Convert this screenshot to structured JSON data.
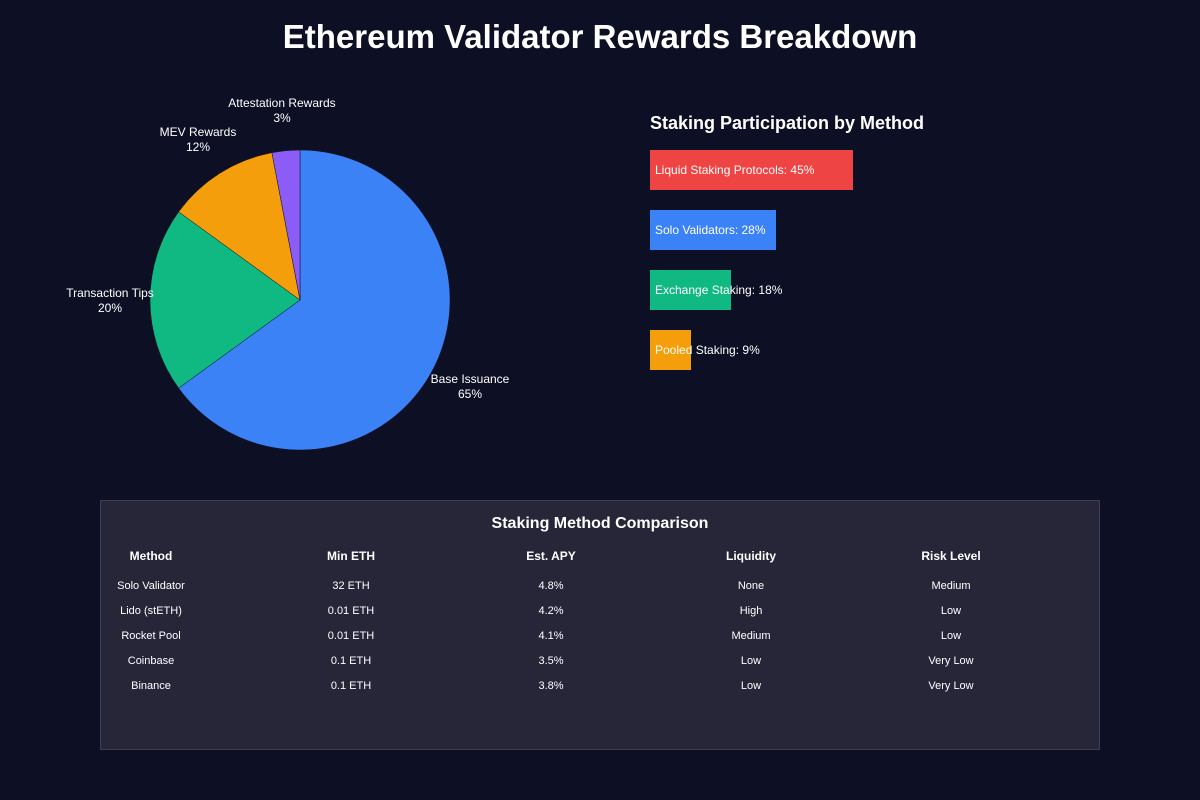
{
  "title": "Ethereum Validator Rewards Breakdown",
  "chart_data": [
    {
      "type": "pie",
      "slices": [
        {
          "label": "Base Issuance",
          "value": 65,
          "value_label": "65%",
          "color": "#3b82f6"
        },
        {
          "label": "Transaction Tips",
          "value": 20,
          "value_label": "20%",
          "color": "#10b981"
        },
        {
          "label": "MEV Rewards",
          "value": 12,
          "value_label": "12%",
          "color": "#f59e0b"
        },
        {
          "label": "Attestation Rewards",
          "value": 3,
          "value_label": "3%",
          "color": "#8b5cf6"
        }
      ]
    },
    {
      "type": "bar",
      "orientation": "horizontal",
      "title": "Staking Participation by Method",
      "bars": [
        {
          "label": "Liquid Staking Protocols: 45%",
          "value": 45,
          "color": "#ef4444"
        },
        {
          "label": "Solo Validators: 28%",
          "value": 28,
          "color": "#3b82f6"
        },
        {
          "label": "Exchange Staking: 18%",
          "value": 18,
          "color": "#10b981"
        },
        {
          "label": "Pooled Staking: 9%",
          "value": 9,
          "color": "#f59e0b"
        }
      ]
    },
    {
      "type": "table",
      "title": "Staking Method Comparison",
      "columns": [
        "Method",
        "Min ETH",
        "Est. APY",
        "Liquidity",
        "Risk Level"
      ],
      "rows": [
        [
          "Solo Validator",
          "32 ETH",
          "4.8%",
          "None",
          "Medium"
        ],
        [
          "Lido (stETH)",
          "0.01 ETH",
          "4.2%",
          "High",
          "Low"
        ],
        [
          "Rocket Pool",
          "0.01 ETH",
          "4.1%",
          "Medium",
          "Low"
        ],
        [
          "Coinbase",
          "0.1 ETH",
          "3.5%",
          "Low",
          "Very Low"
        ],
        [
          "Binance",
          "0.1 ETH",
          "3.8%",
          "Low",
          "Very Low"
        ]
      ]
    }
  ]
}
